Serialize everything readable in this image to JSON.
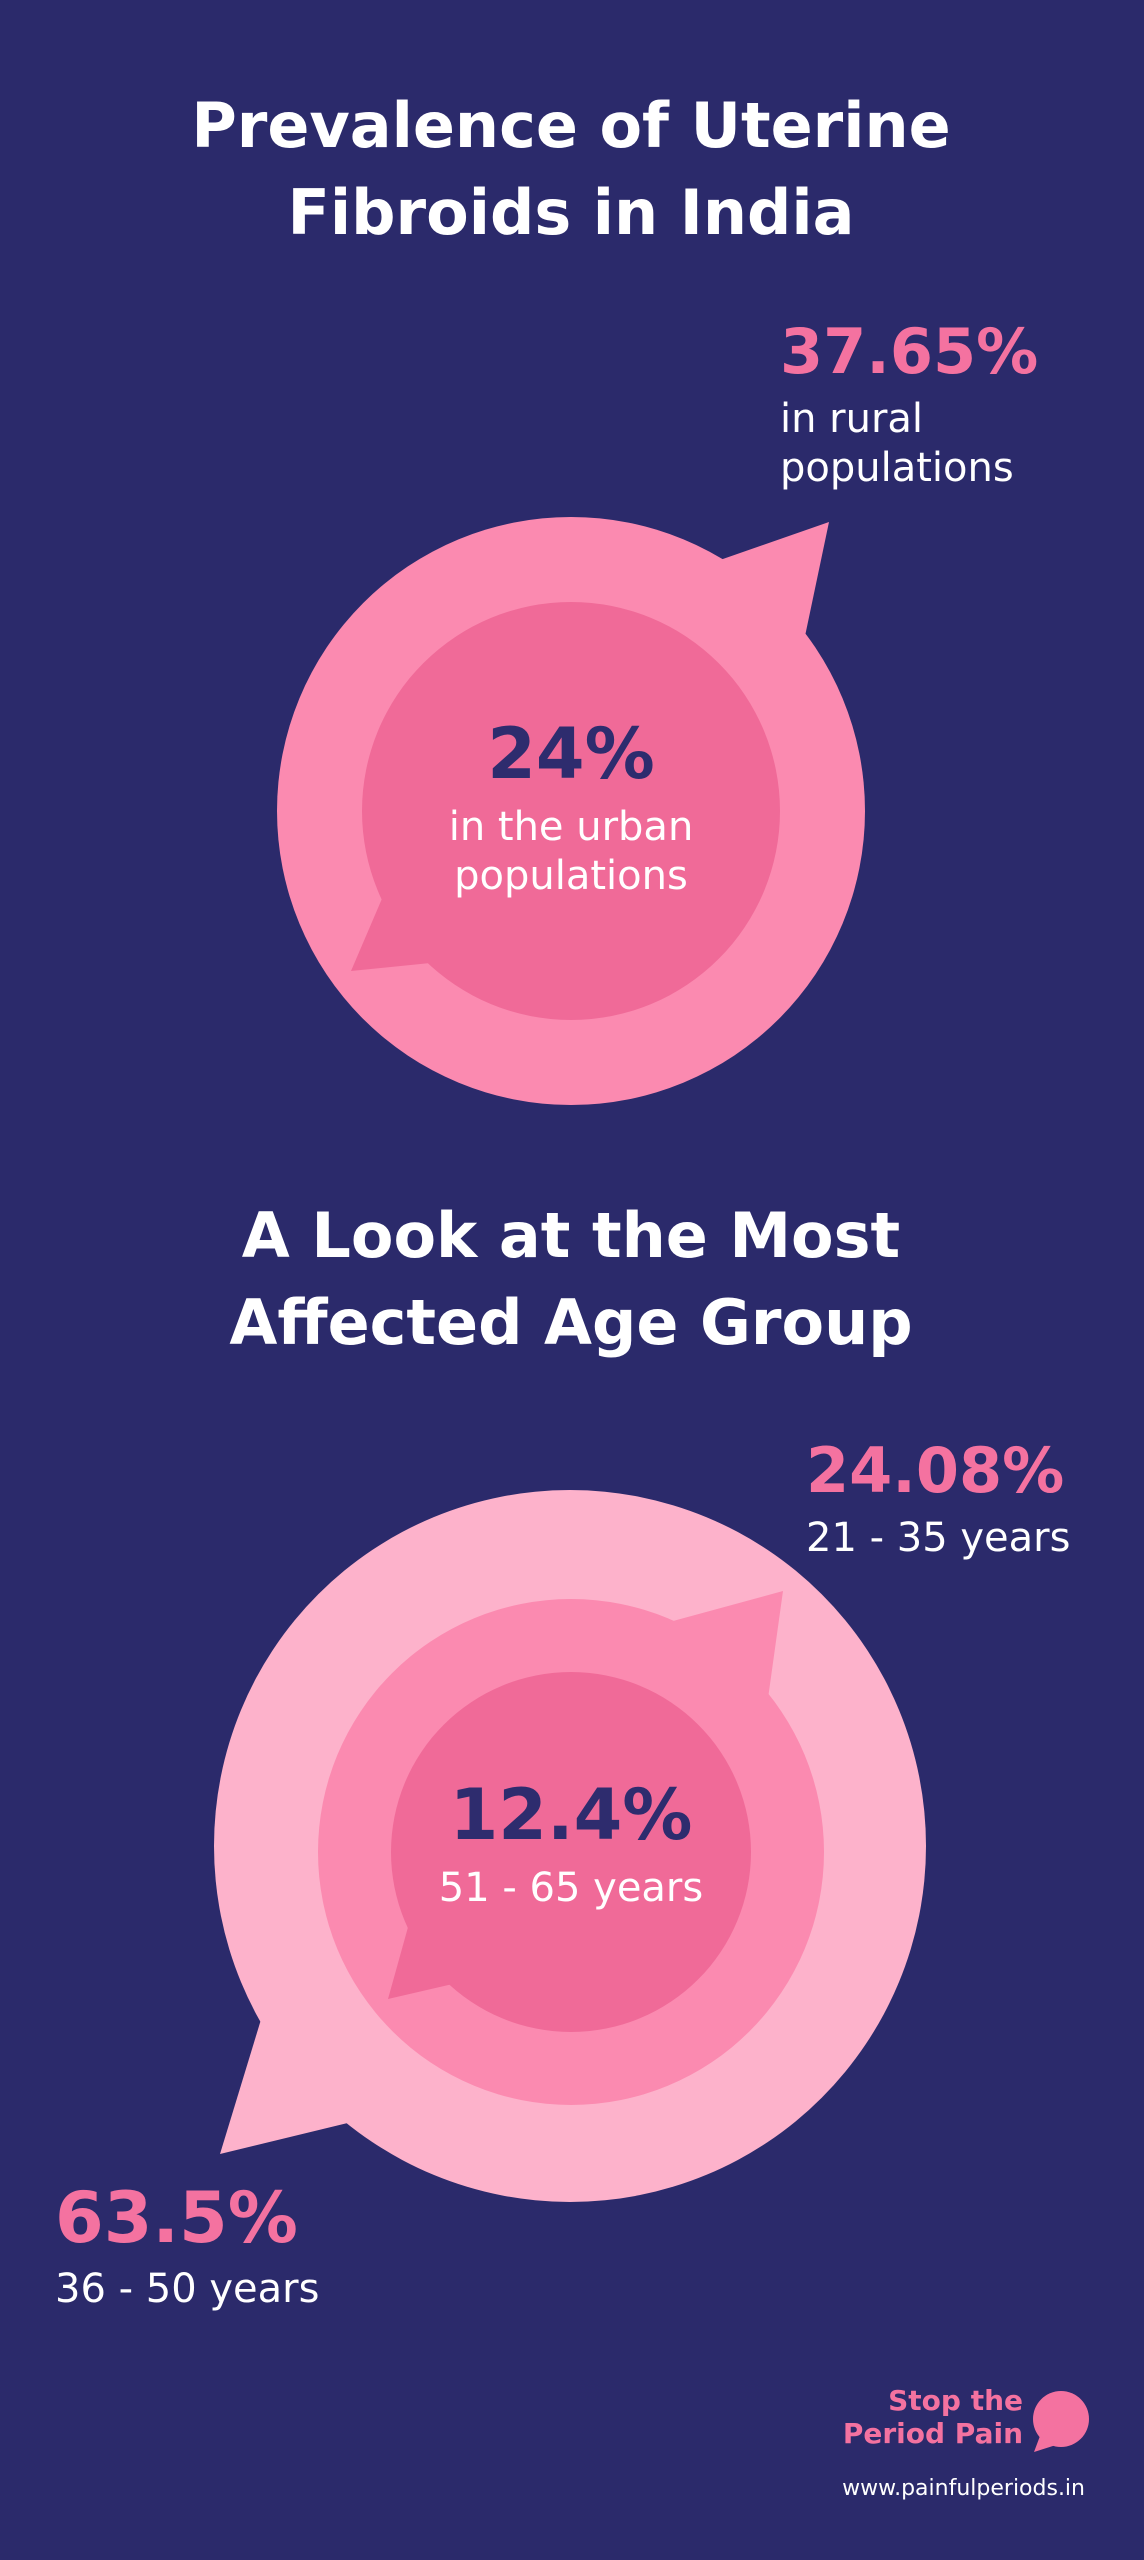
{
  "title": [
    "Prevalence of Uterine",
    "Fibroids in India"
  ],
  "prevalence": {
    "rural": {
      "value": "37.65%",
      "label": [
        "in rural",
        "populations"
      ]
    },
    "urban": {
      "value": "24%",
      "label": [
        "in the urban",
        "populations"
      ]
    }
  },
  "age_title": [
    "A Look at the Most",
    "Affected Age Group"
  ],
  "age_groups": [
    {
      "value": "24.08%",
      "label": "21 - 35 years"
    },
    {
      "value": "12.4%",
      "label": "51 - 65 years"
    },
    {
      "value": "63.5%",
      "label": "36 - 50 years"
    }
  ],
  "footer": {
    "brand": [
      "Stop the",
      "Period Pain"
    ],
    "url": "www.painfulperiods.in"
  }
}
